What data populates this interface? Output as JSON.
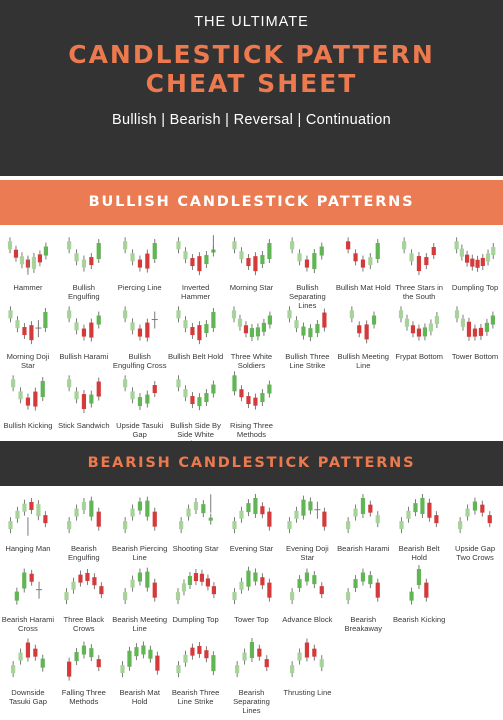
{
  "header": {
    "pre_title": "THE ULTIMATE",
    "title_line1": "CANDLESTICK PATTERN",
    "title_line2": "CHEAT SHEET",
    "subtitle": "Bullish | Bearish | Reversal | Continuation"
  },
  "colors": {
    "bull": "#a7d39a",
    "bull_dark": "#62b554",
    "bear": "#d43a3a",
    "bear_light": "#ea9f9f",
    "wick": "#7a7a7a",
    "accent": "#ec7a4e",
    "dark": "#333334"
  },
  "sections": [
    {
      "key": "bull",
      "heading": "BULLISH CANDLESTICK PATTERNS",
      "patterns": [
        {
          "label": "Hammer",
          "candles": "bdbdBdg",
          "special": "hammer"
        },
        {
          "label": "Bullish Engulfing",
          "candles": "bbbdG"
        },
        {
          "label": "Piercing Line",
          "candles": "bbdDG"
        },
        {
          "label": "Inverted Hammer",
          "candles": "bbdDgi",
          "special": "invhammer"
        },
        {
          "label": "Morning Star",
          "candles": "bbdDgG"
        },
        {
          "label": "Bullish Separating Lines",
          "candles": "bbdGg"
        },
        {
          "label": "Bullish Mat Hold",
          "candles": "dddbG"
        },
        {
          "label": "Three Stars in the South",
          "candles": "bbDdd"
        },
        {
          "label": "Dumpling Top",
          "candles": "bbddddbb"
        },
        {
          "label": "Morning Doji Star",
          "candles": "bbdD+G"
        },
        {
          "label": "Bullish Harami",
          "candles": "bbdDg"
        },
        {
          "label": "Bullish Engulfing Cross",
          "candles": "bbdD+"
        },
        {
          "label": "Bullish Belt Hold",
          "candles": "bbdDgG"
        },
        {
          "label": "Three White Soldiers",
          "candles": "bbdgggg"
        },
        {
          "label": "Bullish Three Line Strike",
          "candles": "bbgggD"
        },
        {
          "label": "Bullish Meeting Line",
          "candles": "bdDg"
        },
        {
          "label": "Frypat Bottom",
          "candles": "bbddgbb"
        },
        {
          "label": "Tower Bottom",
          "candles": "bbDddgg"
        },
        {
          "label": "Bullish Kicking",
          "candles": "bbdDG"
        },
        {
          "label": "Stick Sandwich",
          "candles": "bbDgD"
        },
        {
          "label": "Upside Tasuki Gap",
          "candles": "bbggd"
        },
        {
          "label": "Bullish Side By Side White Lines",
          "candles": "bbdggg"
        },
        {
          "label": "Rising Three Methods",
          "candles": "Gdddgg"
        }
      ]
    },
    {
      "key": "bear",
      "heading": "BEARISH CANDLESTICK PATTERNS",
      "patterns": [
        {
          "label": "Hanging Man",
          "candles": "bbbdBd",
          "special": "hangman"
        },
        {
          "label": "Bearish Engulfing",
          "candles": "bbbGD"
        },
        {
          "label": "Bearish Piercing Line",
          "candles": "bbgGD"
        },
        {
          "label": "Shooting Star",
          "candles": "bbbgi",
          "special": "shooting"
        },
        {
          "label": "Evening Star",
          "candles": "bbgGdD"
        },
        {
          "label": "Evening Doji Star",
          "candles": "bbGg+D"
        },
        {
          "label": "Bearish Harami",
          "candles": "bbGdb"
        },
        {
          "label": "Bearish Belt Hold",
          "candles": "bbgGDd"
        },
        {
          "label": "Upside Gap Two Crows",
          "candles": "bbgdd"
        },
        {
          "label": "Bearish Harami Cross",
          "candles": "gGd+"
        },
        {
          "label": "Three Black Crows",
          "candles": "bbdddd"
        },
        {
          "label": "Bearish Meeting Line",
          "candles": "bbgGD"
        },
        {
          "label": "Dumpling Top",
          "candles": "bbgdddd"
        },
        {
          "label": "Tower Top",
          "candles": "bbGgdD"
        },
        {
          "label": "Advance Block",
          "candles": "bgggd"
        },
        {
          "label": "Bearish Breakaway",
          "candles": "bgggD"
        },
        {
          "label": "Bearish Kicking",
          "candles": "gGD"
        },
        {
          "label": "Downside Tasuki Gap",
          "candles": "bbDdg"
        },
        {
          "label": "Falling Three Methods",
          "candles": "Dgggd"
        },
        {
          "label": "Bearish Mat Hold",
          "candles": "bGgggD"
        },
        {
          "label": "Bearish Three Line Strike",
          "candles": "bbdddG"
        },
        {
          "label": "Bearish Separating Lines",
          "candles": "bbGdd"
        },
        {
          "label": "Thrusting Line",
          "candles": "bbDdb"
        }
      ]
    }
  ]
}
